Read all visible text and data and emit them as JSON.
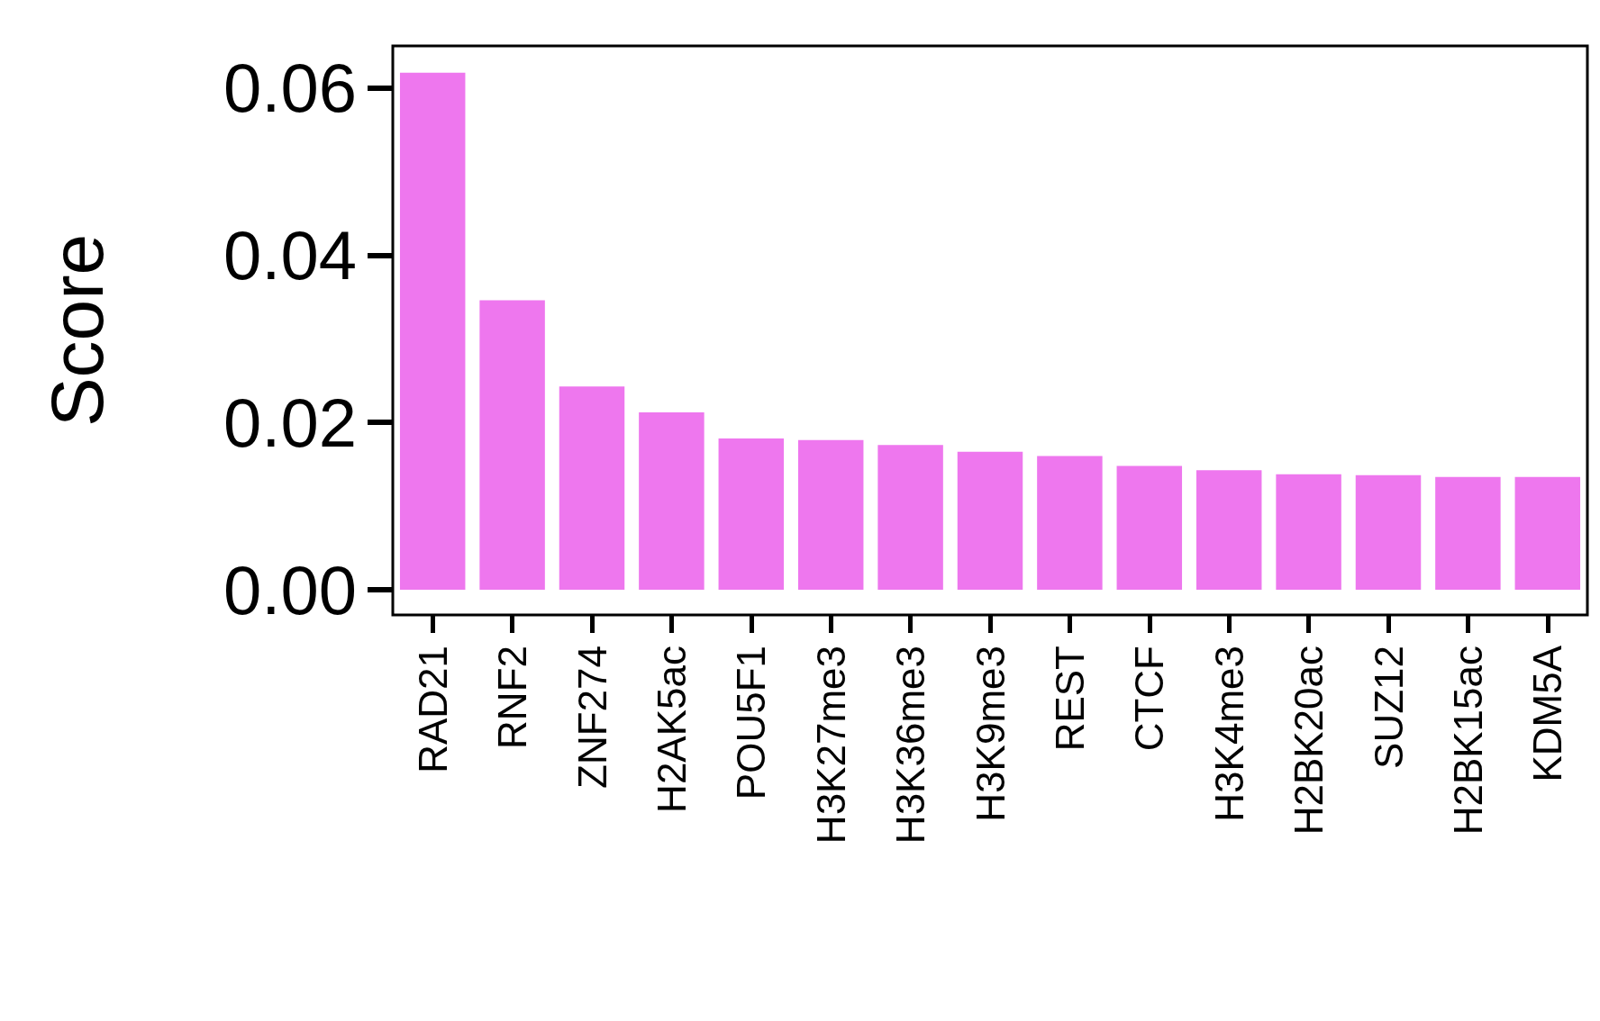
{
  "chart_data": {
    "type": "bar",
    "ylabel": "Score",
    "categories": [
      "RAD21",
      "RNF2",
      "ZNF274",
      "H2AK5ac",
      "POU5F1",
      "H3K27me3",
      "H3K36me3",
      "H3K9me3",
      "REST",
      "CTCF",
      "H3K4me3",
      "H2BK20ac",
      "SUZ12",
      "H2BK15ac",
      "KDM5A"
    ],
    "values": [
      0.0618,
      0.0346,
      0.0243,
      0.0212,
      0.0181,
      0.0179,
      0.0173,
      0.0165,
      0.016,
      0.0148,
      0.0143,
      0.0138,
      0.0137,
      0.0135,
      0.0135
    ],
    "color": "#ee77ee",
    "ylim": [
      -0.003,
      0.065
    ],
    "yticks": [
      {
        "value": 0,
        "label": "0.00"
      },
      0.02,
      0.04,
      0.06
    ],
    "grid": false
  }
}
